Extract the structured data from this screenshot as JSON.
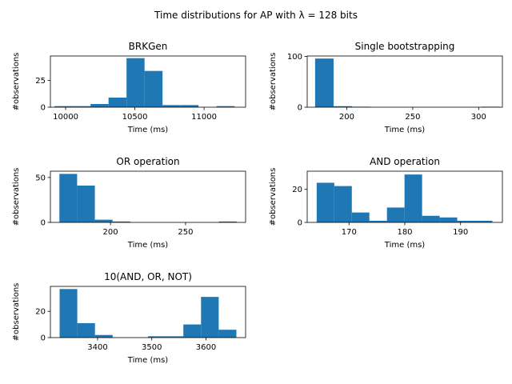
{
  "figure": {
    "suptitle": "Time distributions for AP with λ = 128 bits",
    "bar_color": "#1f77b4"
  },
  "chart_data": [
    {
      "type": "bar",
      "title": "BRKGen",
      "xlabel": "Time (ms)",
      "ylabel": "#observations",
      "xlim": [
        9890,
        11300
      ],
      "ylim": [
        0,
        48
      ],
      "xticks": [
        10000,
        10500,
        11000
      ],
      "yticks": [
        0,
        25
      ],
      "bins": [
        {
          "x0": 9920,
          "x1": 10050,
          "count": 1
        },
        {
          "x0": 10050,
          "x1": 10180,
          "count": 1
        },
        {
          "x0": 10180,
          "x1": 10310,
          "count": 3
        },
        {
          "x0": 10310,
          "x1": 10440,
          "count": 9
        },
        {
          "x0": 10440,
          "x1": 10570,
          "count": 46
        },
        {
          "x0": 10570,
          "x1": 10700,
          "count": 34
        },
        {
          "x0": 10700,
          "x1": 10830,
          "count": 2
        },
        {
          "x0": 10830,
          "x1": 10960,
          "count": 2
        },
        {
          "x0": 10960,
          "x1": 11090,
          "count": 0
        },
        {
          "x0": 11090,
          "x1": 11220,
          "count": 1
        }
      ]
    },
    {
      "type": "bar",
      "title": "Single bootstrapping",
      "xlabel": "Time (ms)",
      "ylabel": "#observations",
      "xlim": [
        170,
        318
      ],
      "ylim": [
        0,
        101
      ],
      "xticks": [
        200,
        250,
        300
      ],
      "yticks": [
        0,
        100
      ],
      "bins": [
        {
          "x0": 176,
          "x1": 190,
          "count": 96
        },
        {
          "x0": 190,
          "x1": 204,
          "count": 2
        },
        {
          "x0": 204,
          "x1": 218,
          "count": 1
        },
        {
          "x0": 218,
          "x1": 232,
          "count": 0
        },
        {
          "x0": 232,
          "x1": 246,
          "count": 0
        },
        {
          "x0": 246,
          "x1": 260,
          "count": 0
        },
        {
          "x0": 260,
          "x1": 274,
          "count": 0
        },
        {
          "x0": 274,
          "x1": 288,
          "count": 0
        },
        {
          "x0": 288,
          "x1": 302,
          "count": 0
        },
        {
          "x0": 302,
          "x1": 316,
          "count": 1
        }
      ]
    },
    {
      "type": "bar",
      "title": "OR operation",
      "xlabel": "Time (ms)",
      "ylabel": "#observations",
      "xlim": [
        160,
        290
      ],
      "ylim": [
        0,
        57
      ],
      "xticks": [
        200,
        250
      ],
      "yticks": [
        0,
        50
      ],
      "bins": [
        {
          "x0": 166,
          "x1": 177.8,
          "count": 54
        },
        {
          "x0": 177.8,
          "x1": 189.6,
          "count": 41
        },
        {
          "x0": 189.6,
          "x1": 201.4,
          "count": 3
        },
        {
          "x0": 201.4,
          "x1": 213.2,
          "count": 1
        },
        {
          "x0": 213.2,
          "x1": 225,
          "count": 0
        },
        {
          "x0": 225,
          "x1": 236.8,
          "count": 0
        },
        {
          "x0": 236.8,
          "x1": 248.6,
          "count": 0
        },
        {
          "x0": 248.6,
          "x1": 260.4,
          "count": 0
        },
        {
          "x0": 260.4,
          "x1": 272.2,
          "count": 0
        },
        {
          "x0": 272.2,
          "x1": 284,
          "count": 1
        }
      ]
    },
    {
      "type": "bar",
      "title": "AND operation",
      "xlabel": "Time (ms)",
      "ylabel": "#observations",
      "xlim": [
        162.5,
        197.5
      ],
      "ylim": [
        0,
        31
      ],
      "xticks": [
        170,
        180,
        190
      ],
      "yticks": [
        0,
        20
      ],
      "bins": [
        {
          "x0": 164.2,
          "x1": 167.35,
          "count": 24
        },
        {
          "x0": 167.35,
          "x1": 170.5,
          "count": 22
        },
        {
          "x0": 170.5,
          "x1": 173.65,
          "count": 6
        },
        {
          "x0": 173.65,
          "x1": 176.8,
          "count": 1
        },
        {
          "x0": 176.8,
          "x1": 179.95,
          "count": 9
        },
        {
          "x0": 179.95,
          "x1": 183.1,
          "count": 29
        },
        {
          "x0": 183.1,
          "x1": 186.25,
          "count": 4
        },
        {
          "x0": 186.25,
          "x1": 189.4,
          "count": 3
        },
        {
          "x0": 189.4,
          "x1": 192.55,
          "count": 1
        },
        {
          "x0": 192.55,
          "x1": 195.7,
          "count": 1
        }
      ]
    },
    {
      "type": "bar",
      "title": "10(AND, OR, NOT)",
      "xlabel": "Time (ms)",
      "ylabel": "#observations",
      "xlim": [
        3313,
        3673
      ],
      "ylim": [
        0,
        39
      ],
      "xticks": [
        3400,
        3500,
        3600
      ],
      "yticks": [
        0,
        20
      ],
      "bins": [
        {
          "x0": 3330,
          "x1": 3362.6,
          "count": 37
        },
        {
          "x0": 3362.6,
          "x1": 3395.2,
          "count": 11
        },
        {
          "x0": 3395.2,
          "x1": 3427.8,
          "count": 2
        },
        {
          "x0": 3427.8,
          "x1": 3460.4,
          "count": 0
        },
        {
          "x0": 3460.4,
          "x1": 3493,
          "count": 0
        },
        {
          "x0": 3493,
          "x1": 3525.6,
          "count": 1
        },
        {
          "x0": 3525.6,
          "x1": 3558.2,
          "count": 1
        },
        {
          "x0": 3558.2,
          "x1": 3590.8,
          "count": 10
        },
        {
          "x0": 3590.8,
          "x1": 3623.4,
          "count": 31
        },
        {
          "x0": 3623.4,
          "x1": 3656,
          "count": 6
        }
      ]
    }
  ]
}
